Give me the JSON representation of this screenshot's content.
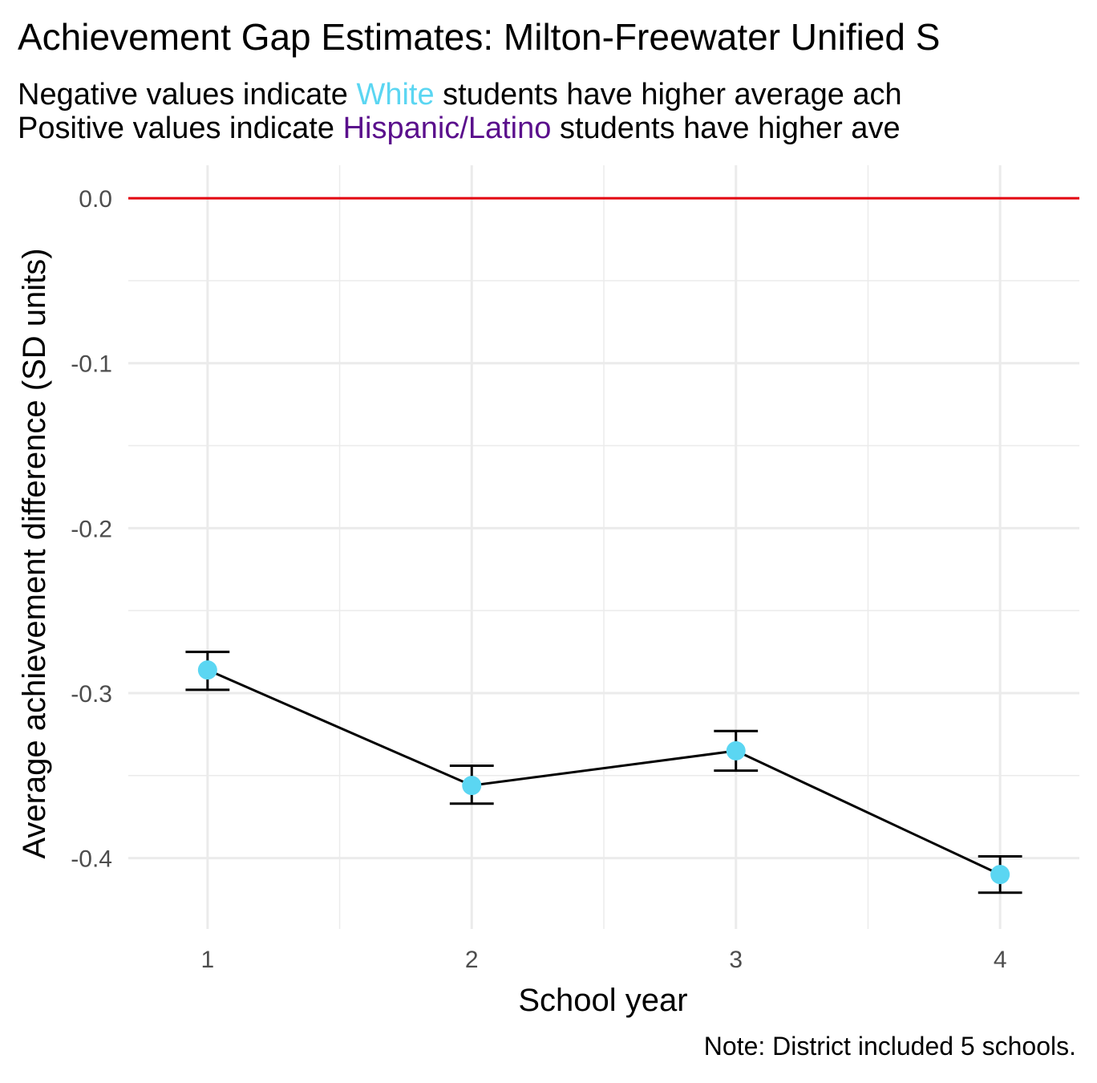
{
  "title": "Achievement Gap Estimates: Milton-Freewater Unified S",
  "subtitle": {
    "line1_prefix": "Negative values indicate ",
    "line1_group": "White",
    "line1_suffix": " students have higher average ach",
    "line2_prefix": "Positive values indicate ",
    "line2_group": "Hispanic/Latino",
    "line2_suffix": " students have higher ave"
  },
  "caption": "Note: District included 5 schools.",
  "colors": {
    "white_group": "#5BD6F2",
    "hispanic_group": "#5A0F8C",
    "reference_line": "#E3000F",
    "points": "#5BD6F2",
    "line": "#000000",
    "grid": "#EBEBEB"
  },
  "chart_data": {
    "type": "line",
    "xlabel": "School year",
    "ylabel": "Average achievement difference (SD units)",
    "x": [
      1,
      2,
      3,
      4
    ],
    "x_ticks": [
      "1",
      "2",
      "3",
      "4"
    ],
    "y_ticks": [
      "0.0",
      "-0.1",
      "-0.2",
      "-0.3",
      "-0.4"
    ],
    "y_tick_values": [
      0.0,
      -0.1,
      -0.2,
      -0.3,
      -0.4
    ],
    "xlim": [
      0.7,
      4.3
    ],
    "ylim": [
      -0.443,
      0.02
    ],
    "reference_line": 0.0,
    "series": [
      {
        "values": [
          -0.286,
          -0.356,
          -0.335,
          -0.41
        ],
        "ci_lower": [
          -0.298,
          -0.367,
          -0.347,
          -0.421
        ],
        "ci_upper": [
          -0.275,
          -0.344,
          -0.323,
          -0.399
        ]
      }
    ],
    "grid": true,
    "legend": "none"
  }
}
